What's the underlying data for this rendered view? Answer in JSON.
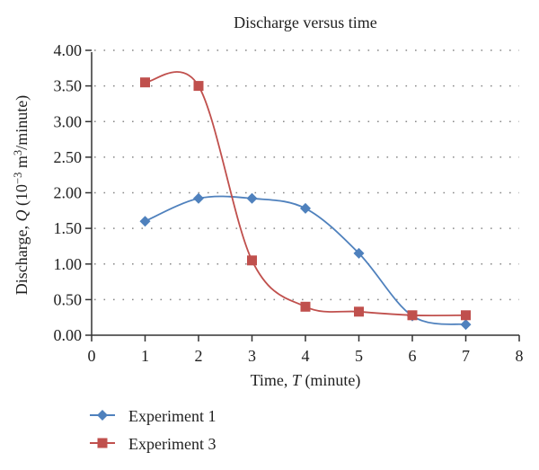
{
  "chart_data": {
    "type": "line",
    "title": "Discharge versus time",
    "xlabel_parts": [
      {
        "text": "Time, "
      },
      {
        "text": "T",
        "italic": true
      },
      {
        "text": " (minute)"
      }
    ],
    "ylabel_parts": [
      {
        "text": "Discharge, "
      },
      {
        "text": "Q",
        "italic": true
      },
      {
        "text": " (10"
      },
      {
        "text": "−3",
        "sup": true
      },
      {
        "text": " m"
      },
      {
        "text": "3",
        "sup": true
      },
      {
        "text": "/minute)"
      }
    ],
    "xlim": [
      0,
      8
    ],
    "ylim": [
      0,
      4
    ],
    "xticks": [
      0,
      1,
      2,
      3,
      4,
      5,
      6,
      7,
      8
    ],
    "xtick_labels": [
      "0",
      "1",
      "2",
      "3",
      "4",
      "5",
      "6",
      "7",
      "8"
    ],
    "yticks": [
      0,
      0.5,
      1,
      1.5,
      2,
      2.5,
      3,
      3.5,
      4
    ],
    "ytick_labels": [
      "0.00",
      "0.50",
      "1.00",
      "1.50",
      "2.00",
      "2.50",
      "3.00",
      "3.50",
      "4.00"
    ],
    "grid": "horizontal-dotted",
    "legend_position": "bottom-left",
    "x": [
      1,
      2,
      3,
      4,
      5,
      6,
      7
    ],
    "series": [
      {
        "name": "Experiment 1",
        "marker": "diamond",
        "color": "#4F81BD",
        "values": [
          1.6,
          1.92,
          1.92,
          1.78,
          1.15,
          0.27,
          0.15
        ]
      },
      {
        "name": "Experiment 3",
        "marker": "square",
        "color": "#C0504D",
        "values": [
          3.55,
          3.5,
          1.05,
          0.4,
          0.33,
          0.28,
          0.28
        ]
      }
    ],
    "colors": {
      "axis": "#333333",
      "grid": "#8a8a8a",
      "text": "#1f1f1f",
      "background": "#ffffff"
    }
  }
}
